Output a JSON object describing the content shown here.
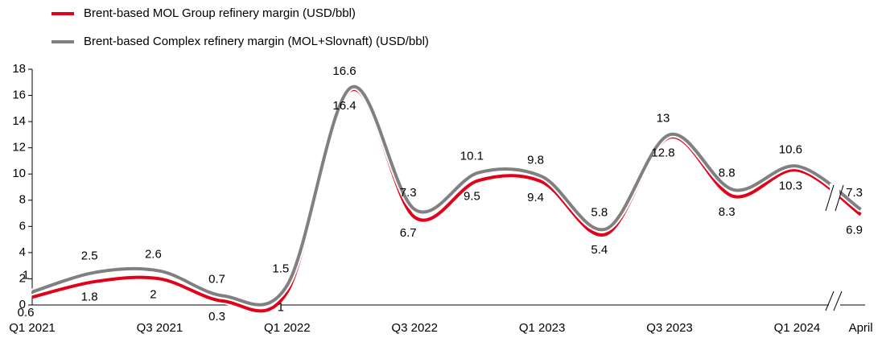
{
  "chart_data": {
    "type": "line",
    "categories": [
      "Q1 2021",
      null,
      "Q3 2021",
      null,
      "Q1 2022",
      null,
      "Q3 2022",
      null,
      "Q1 2023",
      null,
      "Q3 2023",
      null,
      "Q1 2024",
      "April"
    ],
    "series": [
      {
        "name": "Brent-based MOL Group refinery margin (USD/bbl)",
        "color": "#e2001a",
        "values": [
          0.6,
          1.8,
          2.0,
          0.3,
          1.0,
          16.4,
          6.7,
          9.5,
          9.4,
          5.4,
          12.8,
          8.3,
          10.3,
          6.9
        ]
      },
      {
        "name": "Brent-based Complex refinery margin (MOL+Slovnaft) (USD/bbl)",
        "color": "#808080",
        "values": [
          1.0,
          2.5,
          2.6,
          0.7,
          1.5,
          16.6,
          7.3,
          10.1,
          9.8,
          5.8,
          13.0,
          8.8,
          10.6,
          7.3
        ]
      }
    ],
    "ylim": [
      0,
      18
    ],
    "yticks": [
      0,
      2,
      4,
      6,
      8,
      10,
      12,
      14,
      16,
      18
    ]
  }
}
